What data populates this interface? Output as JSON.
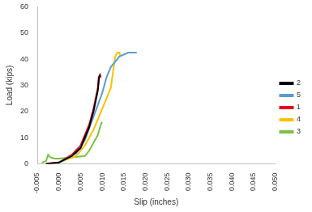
{
  "chart_data": {
    "type": "line",
    "x_label": "Slip (inches)",
    "y_label": "Load (kips)",
    "xlim": [
      -0.005,
      0.05
    ],
    "xticks": [
      -0.005,
      {
        "value": 0,
        "label": "0.000"
      },
      0.005,
      {
        "value": 0.01,
        "label": "0.010"
      },
      0.015,
      {
        "value": 0.02,
        "label": "0.020"
      },
      0.025,
      {
        "value": 0.03,
        "label": "0.030"
      },
      0.035,
      {
        "value": 0.04,
        "label": "0.040"
      },
      0.045,
      {
        "value": 0.05,
        "label": "0.050"
      }
    ],
    "ylim": [
      0,
      60
    ],
    "yticks": [
      0,
      10,
      20,
      30,
      40,
      50,
      60
    ],
    "grid": false,
    "legend": "right",
    "series": [
      {
        "name": "2",
        "color": "#000000",
        "x": [
          -0.003,
          0,
          0.003,
          0.005,
          0.007,
          0.008,
          0.009,
          0.0093,
          0.0095
        ],
        "values": [
          0,
          0.5,
          3,
          6,
          14,
          20,
          28,
          33,
          34
        ]
      },
      {
        "name": "5",
        "color": "#5b9bd5",
        "x": [
          0,
          0.004,
          0.006,
          0.008,
          0.01,
          0.011,
          0.012,
          0.014,
          0.016,
          0.018
        ],
        "values": [
          0.5,
          4,
          9,
          18,
          27,
          33,
          37,
          41,
          42.5,
          42.5
        ]
      },
      {
        "name": "1",
        "color": "#e8001c",
        "x": [
          -0.003,
          0,
          0.003,
          0.005,
          0.007,
          0.008,
          0.009,
          0.0092,
          0.0095,
          0.0097
        ],
        "values": [
          0,
          0.5,
          3.5,
          7,
          15,
          21,
          29,
          33,
          34,
          33
        ]
      },
      {
        "name": "4",
        "color": "#ffc000",
        "x": [
          0,
          0.004,
          0.006,
          0.008,
          0.01,
          0.012,
          0.0125,
          0.013,
          0.0135,
          0.014,
          0.0142
        ],
        "values": [
          0.5,
          3,
          7,
          13,
          21,
          29,
          35,
          41,
          42.5,
          42.5,
          41
        ]
      },
      {
        "name": "3",
        "color": "#7ac143",
        "x": [
          -0.004,
          -0.003,
          -0.0025,
          -0.002,
          -0.001,
          0,
          0.003,
          0.006,
          0.007,
          0.008,
          0.009,
          0.0098,
          0.01
        ],
        "values": [
          0.5,
          1,
          3.5,
          2.5,
          2,
          2,
          2.5,
          3,
          5,
          8,
          11,
          15.5,
          16
        ]
      }
    ]
  }
}
